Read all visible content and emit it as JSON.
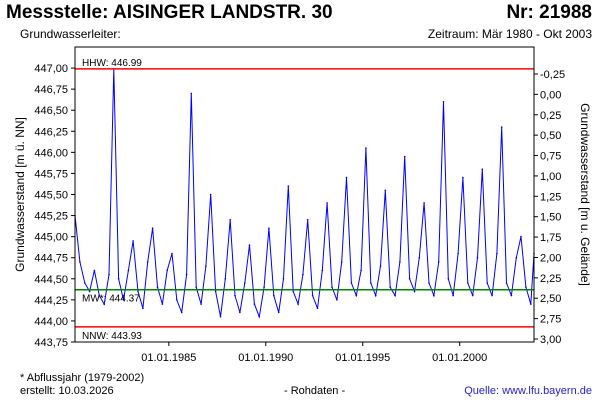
{
  "header": {
    "station_title": "Messstelle: AISINGER LANDSTR. 30",
    "station_nr": "Nr: 21988",
    "aquifer_label": "Grundwasserleiter:",
    "period": "Zeitraum: Mär 1980 - Okt 2003"
  },
  "footer": {
    "note": "* Abflussjahr (1979-2002)",
    "created": "erstellt:  10.03.2026",
    "raw": "- Rohdaten -",
    "source": "Quelle: www.lfu.bayern.de"
  },
  "chart_data": {
    "type": "line",
    "ylabel_left": "Grundwasserstand [m ü. NN]",
    "ylabel_right": "Grundwasserstand [m u. Gelände]",
    "ylim": [
      443.75,
      447.25
    ],
    "y_ticks_left": [
      "447,00",
      "446,75",
      "446,50",
      "446,25",
      "446,00",
      "445,75",
      "445,50",
      "445,25",
      "445,00",
      "444,75",
      "444,50",
      "444,25",
      "444,00",
      "443,75"
    ],
    "y_ticks_right": [
      "-0,25",
      "0,00",
      "0,25",
      "0,50",
      "0,75",
      "1,00",
      "1,25",
      "1,50",
      "1,75",
      "2,00",
      "2,25",
      "2,50",
      "2,75",
      "3,00"
    ],
    "x_ticks": [
      "01.01.1985",
      "01.01.1990",
      "01.01.1995",
      "01.01.2000"
    ],
    "x_range": [
      "1980-03-01",
      "2003-10-31"
    ],
    "grid": false,
    "reference_lines": [
      {
        "label": "HHW: 446.99",
        "value": 446.99,
        "color": "#ff0000"
      },
      {
        "label": "MW*: 444.37",
        "value": 444.37,
        "color": "#008000"
      },
      {
        "label": "NNW: 443.93",
        "value": 443.93,
        "color": "#ff0000"
      }
    ],
    "series": [
      {
        "color": "#0000ff",
        "x": [
          "1980-03-01",
          "1980-06-01",
          "1980-09-01",
          "1980-12-01",
          "1981-03-01",
          "1981-06-01",
          "1981-09-01",
          "1981-12-01",
          "1982-03-01",
          "1982-06-01",
          "1982-09-01",
          "1982-12-01",
          "1983-03-01",
          "1983-06-01",
          "1983-09-01",
          "1983-12-01",
          "1984-03-01",
          "1984-06-01",
          "1984-09-01",
          "1984-12-01",
          "1985-03-01",
          "1985-06-01",
          "1985-09-01",
          "1985-12-01",
          "1986-03-01",
          "1986-06-01",
          "1986-09-01",
          "1986-12-01",
          "1987-03-01",
          "1987-06-01",
          "1987-09-01",
          "1987-12-01",
          "1988-03-01",
          "1988-06-01",
          "1988-09-01",
          "1988-12-01",
          "1989-03-01",
          "1989-06-01",
          "1989-09-01",
          "1989-12-01",
          "1990-03-01",
          "1990-06-01",
          "1990-09-01",
          "1990-12-01",
          "1991-03-01",
          "1991-06-01",
          "1991-09-01",
          "1991-12-01",
          "1992-03-01",
          "1992-06-01",
          "1992-09-01",
          "1992-12-01",
          "1993-03-01",
          "1993-06-01",
          "1993-09-01",
          "1993-12-01",
          "1994-03-01",
          "1994-06-01",
          "1994-09-01",
          "1994-12-01",
          "1995-03-01",
          "1995-06-01",
          "1995-09-01",
          "1995-12-01",
          "1996-03-01",
          "1996-06-01",
          "1996-09-01",
          "1996-12-01",
          "1997-03-01",
          "1997-06-01",
          "1997-09-01",
          "1997-12-01",
          "1998-03-01",
          "1998-06-01",
          "1998-09-01",
          "1998-12-01",
          "1999-03-01",
          "1999-06-01",
          "1999-09-01",
          "1999-12-01",
          "2000-03-01",
          "2000-06-01",
          "2000-09-01",
          "2000-12-01",
          "2001-03-01",
          "2001-06-01",
          "2001-09-01",
          "2001-12-01",
          "2002-03-01",
          "2002-06-01",
          "2002-09-01",
          "2002-12-01",
          "2003-03-01",
          "2003-06-01",
          "2003-09-01",
          "2003-10-31"
        ],
        "y": [
          445.25,
          444.7,
          444.45,
          444.35,
          444.6,
          444.3,
          444.2,
          444.55,
          446.99,
          444.5,
          444.25,
          444.6,
          444.95,
          444.35,
          444.15,
          444.7,
          445.1,
          444.4,
          444.2,
          444.6,
          444.8,
          444.25,
          444.1,
          444.55,
          446.7,
          444.4,
          444.2,
          444.65,
          445.5,
          444.35,
          444.05,
          444.5,
          445.2,
          444.3,
          444.1,
          444.45,
          444.9,
          444.2,
          444.05,
          444.4,
          445.1,
          444.3,
          444.1,
          444.5,
          445.6,
          444.35,
          444.2,
          444.55,
          445.2,
          444.3,
          444.15,
          444.6,
          445.4,
          444.4,
          444.25,
          444.7,
          445.7,
          444.45,
          444.3,
          444.6,
          446.05,
          444.45,
          444.3,
          444.65,
          445.55,
          444.4,
          444.3,
          444.7,
          445.95,
          444.5,
          444.35,
          444.75,
          445.4,
          444.45,
          444.3,
          444.7,
          446.6,
          444.5,
          444.3,
          444.8,
          445.7,
          444.45,
          444.3,
          444.75,
          445.8,
          444.45,
          444.3,
          444.8,
          446.3,
          444.45,
          444.3,
          444.75,
          445.0,
          444.4,
          444.2,
          444.8
        ]
      }
    ]
  }
}
